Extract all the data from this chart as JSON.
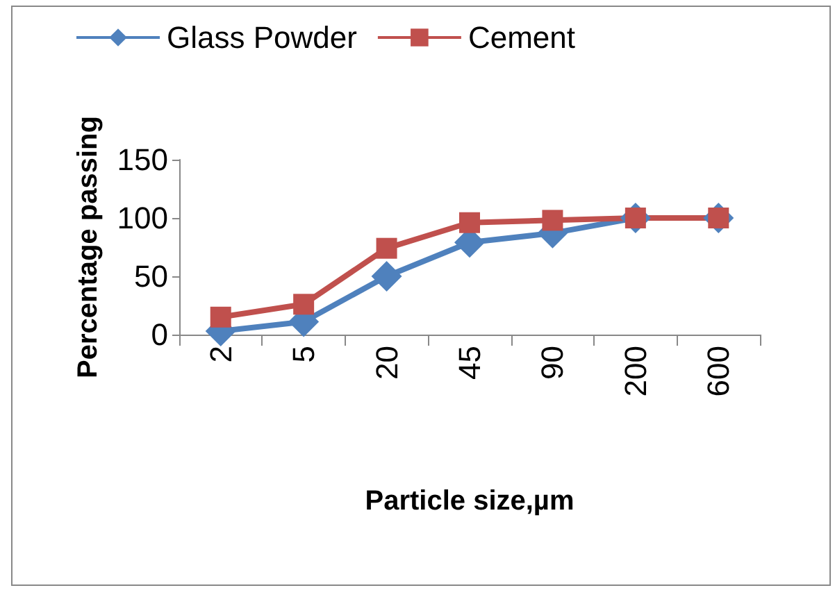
{
  "chart_data": {
    "type": "line",
    "xlabel": "Particle size,µm",
    "ylabel": "Percentage passing",
    "categories": [
      "2",
      "5",
      "20",
      "45",
      "90",
      "200",
      "600"
    ],
    "series": [
      {
        "name": "Glass Powder",
        "color": "#4f81bd",
        "marker": "diamond",
        "values": [
          3,
          11,
          50,
          79,
          87,
          100,
          100
        ]
      },
      {
        "name": "Cement",
        "color": "#c0504d",
        "marker": "square",
        "values": [
          15,
          26,
          74,
          96,
          98,
          100,
          100
        ]
      }
    ],
    "ylim": [
      0,
      150
    ],
    "yticks": [
      0,
      50,
      100,
      150
    ],
    "grid": false,
    "legend": "top"
  }
}
